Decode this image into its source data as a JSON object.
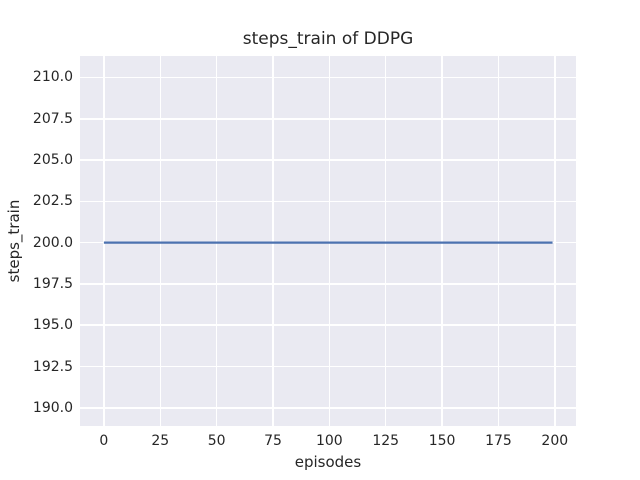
{
  "figure": {
    "background_color": "#ffffff"
  },
  "chart_data": {
    "type": "line",
    "title": "steps_train of DDPG",
    "xlabel": "episodes",
    "ylabel": "steps_train",
    "plot_background_color": "#eaeaf2",
    "grid_color": "#ffffff",
    "text_color": "#262626",
    "grid": "on",
    "legend": "none",
    "xlim": [
      -10.6,
      209.4
    ],
    "ylim": [
      188.9,
      211.3
    ],
    "x_ticks": {
      "values": [
        0,
        25,
        50,
        75,
        100,
        125,
        150,
        175,
        200
      ],
      "labels": [
        "0",
        "25",
        "50",
        "75",
        "100",
        "125",
        "150",
        "175",
        "200"
      ]
    },
    "y_ticks": {
      "values": [
        190,
        192.5,
        195,
        197.5,
        200,
        202.5,
        205,
        207.5,
        210
      ],
      "labels": [
        "190.0",
        "192.5",
        "195.0",
        "197.5",
        "200.0",
        "202.5",
        "205.0",
        "207.5",
        "210.0"
      ]
    },
    "series": [
      {
        "name": "steps_train",
        "color": "#4c72b0",
        "line_width": 2.2,
        "points": [
          [
            0,
            200
          ],
          [
            199,
            200
          ]
        ]
      }
    ]
  }
}
